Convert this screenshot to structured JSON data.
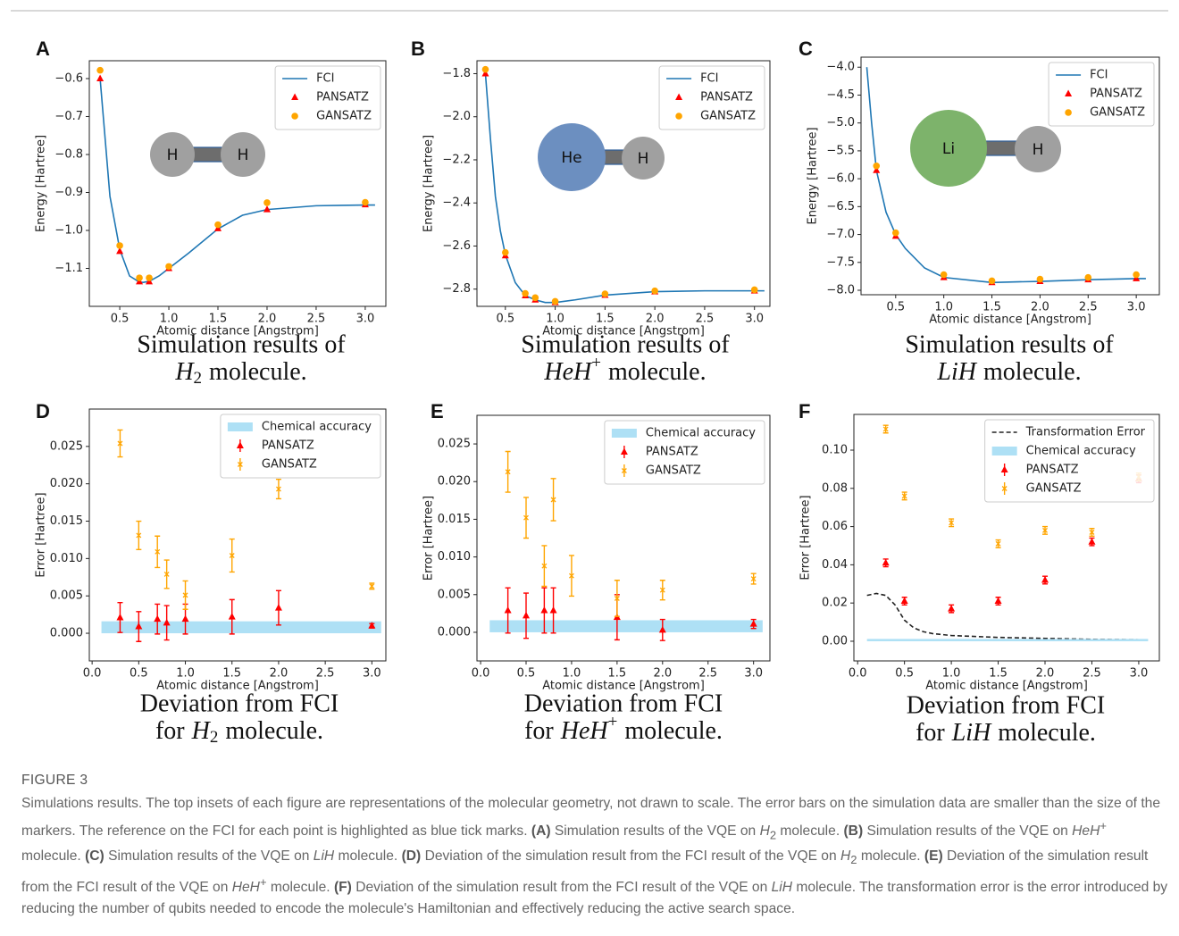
{
  "chart_data": [
    {
      "type": "line",
      "panel": "A",
      "xlabel": "Atomic distance [Angstrom]",
      "ylabel": "Energy [Hartree]",
      "xlim": [
        0.19,
        3.21
      ],
      "ylim": [
        -1.2,
        -0.553
      ],
      "xticks": [
        0.5,
        {
          "value": 1.0,
          "label": "1.0"
        },
        1.5,
        {
          "value": 2.0,
          "label": "2.0"
        },
        2.5,
        {
          "value": 3.0,
          "label": "3.0"
        }
      ],
      "yticks": [
        {
          "value": -1.1,
          "label": "−1.1"
        },
        {
          "value": -1.0,
          "label": "−1.0"
        },
        {
          "value": -0.9,
          "label": "−0.9"
        },
        {
          "value": -0.8,
          "label": "−0.8"
        },
        {
          "value": -0.7,
          "label": "−0.7"
        },
        {
          "value": -0.6,
          "label": "−0.6"
        }
      ],
      "legend": "upper right",
      "inset": [
        "H",
        "H"
      ],
      "caption": {
        "line1": "Simulation results of",
        "formula": "H",
        "sub": "2",
        "end": "molecule."
      },
      "series": [
        {
          "name": "FCI",
          "style": "line",
          "color": "#1f77b4",
          "x": [
            0.3,
            0.4,
            0.5,
            0.6,
            0.7,
            0.74,
            0.8,
            0.9,
            1.0,
            1.2,
            1.5,
            1.75,
            2.0,
            2.5,
            3.0,
            3.1
          ],
          "values": [
            -0.6,
            -0.91,
            -1.05,
            -1.12,
            -1.136,
            -1.137,
            -1.134,
            -1.12,
            -1.1,
            -1.06,
            -0.996,
            -0.96,
            -0.945,
            -0.935,
            -0.933,
            -0.933
          ]
        },
        {
          "name": "PANSATZ",
          "style": "marker",
          "marker": "triangle",
          "color": "#ff0000",
          "x": [
            0.3,
            0.5,
            0.7,
            0.8,
            1.0,
            1.5,
            2.0,
            3.0
          ],
          "values": [
            -0.6,
            -1.055,
            -1.135,
            -1.135,
            -1.1,
            -0.995,
            -0.945,
            -0.932
          ]
        },
        {
          "name": "GANSATZ",
          "style": "marker",
          "marker": "dot",
          "color": "#ffa500",
          "x": [
            0.3,
            0.5,
            0.7,
            0.8,
            1.0,
            1.5,
            2.0,
            3.0
          ],
          "values": [
            -0.578,
            -1.04,
            -1.125,
            -1.125,
            -1.095,
            -0.985,
            -0.927,
            -0.926
          ]
        }
      ]
    },
    {
      "type": "line",
      "panel": "B",
      "xlabel": "Atomic distance [Angstrom]",
      "ylabel": "Energy [Hartree]",
      "xlim": [
        0.215,
        3.155
      ],
      "ylim": [
        -2.88,
        -1.74
      ],
      "xticks": [
        0.5,
        {
          "value": 1.0,
          "label": "1.0"
        },
        1.5,
        {
          "value": 2.0,
          "label": "2.0"
        },
        2.5,
        {
          "value": 3.0,
          "label": "3.0"
        }
      ],
      "yticks": [
        {
          "value": -2.8,
          "label": "−2.8"
        },
        {
          "value": -2.6,
          "label": "−2.6"
        },
        {
          "value": -2.4,
          "label": "−2.4"
        },
        {
          "value": -2.2,
          "label": "−2.2"
        },
        {
          "value": -2.0,
          "label": "−2.0"
        },
        {
          "value": -1.8,
          "label": "−1.8"
        }
      ],
      "legend": "upper right",
      "inset": [
        "He",
        "H"
      ],
      "caption": {
        "line1": "Simulation results of",
        "formula": "HeH",
        "sup": "+",
        "end": "molecule."
      },
      "series": [
        {
          "name": "FCI",
          "style": "line",
          "color": "#1f77b4",
          "x": [
            0.3,
            0.35,
            0.4,
            0.45,
            0.5,
            0.6,
            0.7,
            0.8,
            0.9,
            1.0,
            1.2,
            1.5,
            2.0,
            2.5,
            3.0,
            3.1
          ],
          "values": [
            -1.8,
            -2.1,
            -2.37,
            -2.53,
            -2.64,
            -2.77,
            -2.83,
            -2.85,
            -2.862,
            -2.862,
            -2.85,
            -2.828,
            -2.812,
            -2.808,
            -2.808,
            -2.808
          ]
        },
        {
          "name": "PANSATZ",
          "style": "marker",
          "marker": "triangle",
          "color": "#ff0000",
          "x": [
            0.3,
            0.5,
            0.7,
            0.8,
            1.0,
            1.5,
            2.0,
            3.0
          ],
          "values": [
            -1.8,
            -2.645,
            -2.83,
            -2.85,
            -2.862,
            -2.828,
            -2.812,
            -2.808
          ]
        },
        {
          "name": "GANSATZ",
          "style": "marker",
          "marker": "dot",
          "color": "#ffa500",
          "x": [
            0.3,
            0.5,
            0.7,
            0.8,
            1.0,
            1.5,
            2.0,
            3.0
          ],
          "values": [
            -1.78,
            -2.63,
            -2.82,
            -2.84,
            -2.857,
            -2.822,
            -2.808,
            -2.803
          ]
        }
      ]
    },
    {
      "type": "line",
      "panel": "C",
      "xlabel": "Atomic distance [Angstrom]",
      "ylabel": "Energy [Hartree]",
      "xlim": [
        0.14,
        3.24
      ],
      "ylim": [
        -8.08,
        -3.82
      ],
      "xticks": [
        0.5,
        {
          "value": 1.0,
          "label": "1.0"
        },
        1.5,
        {
          "value": 2.0,
          "label": "2.0"
        },
        2.5,
        {
          "value": 3.0,
          "label": "3.0"
        }
      ],
      "yticks": [
        {
          "value": -8.0,
          "label": "−8.0"
        },
        {
          "value": -7.5,
          "label": "−7.5"
        },
        {
          "value": -7.0,
          "label": "−7.0"
        },
        {
          "value": -6.5,
          "label": "−6.5"
        },
        {
          "value": -6.0,
          "label": "−6.0"
        },
        {
          "value": -5.5,
          "label": "−5.5"
        },
        {
          "value": -5.0,
          "label": "−5.0"
        },
        {
          "value": -4.5,
          "label": "−4.5"
        },
        {
          "value": -4.0,
          "label": "−4.0"
        }
      ],
      "legend": "upper right",
      "inset": [
        "Li",
        "H"
      ],
      "caption": {
        "line1": "Simulation results of",
        "formula": "LiH",
        "end": "molecule."
      },
      "series": [
        {
          "name": "FCI",
          "style": "line",
          "color": "#1f77b4",
          "x": [
            0.2,
            0.25,
            0.3,
            0.4,
            0.5,
            0.6,
            0.8,
            1.0,
            1.5,
            2.0,
            2.5,
            3.0,
            3.1
          ],
          "values": [
            -4.0,
            -5.0,
            -5.85,
            -6.6,
            -7.0,
            -7.25,
            -7.6,
            -7.77,
            -7.86,
            -7.84,
            -7.81,
            -7.79,
            -7.79
          ]
        },
        {
          "name": "PANSATZ",
          "style": "marker",
          "marker": "triangle",
          "color": "#ff0000",
          "x": [
            0.3,
            0.5,
            1.0,
            1.5,
            2.0,
            2.5,
            3.0
          ],
          "values": [
            -5.85,
            -7.03,
            -7.77,
            -7.86,
            -7.84,
            -7.81,
            -7.79
          ]
        },
        {
          "name": "GANSATZ",
          "style": "marker",
          "marker": "dot",
          "color": "#ffa500",
          "x": [
            0.3,
            0.5,
            1.0,
            1.5,
            2.0,
            2.5,
            3.0
          ],
          "values": [
            -5.77,
            -6.97,
            -7.72,
            -7.83,
            -7.8,
            -7.77,
            -7.72
          ]
        }
      ]
    },
    {
      "type": "errorbar",
      "panel": "D",
      "xlabel": "Atomic distance [Angstrom]",
      "ylabel": "Error [Hartree]",
      "xlim": [
        -0.03,
        3.15
      ],
      "ylim": [
        -0.0037,
        0.03
      ],
      "xticks": [
        {
          "value": 0.0,
          "label": "0.0"
        },
        0.5,
        {
          "value": 1.0,
          "label": "1.0"
        },
        1.5,
        {
          "value": 2.0,
          "label": "2.0"
        },
        2.5,
        {
          "value": 3.0,
          "label": "3.0"
        }
      ],
      "yticks": [
        {
          "value": 0,
          "label": "0.000"
        },
        0.005,
        {
          "value": 0.01,
          "label": "0.010"
        },
        0.015,
        {
          "value": 0.02,
          "label": "0.020"
        },
        0.025
      ],
      "legend": "upper right",
      "caption": {
        "line1": "Deviation from FCI",
        "pre": "for",
        "formula": "H",
        "sub": "2",
        "end": "molecule."
      },
      "series": [
        {
          "name": "Chemical accuracy",
          "style": "band",
          "color": "#aee0f5",
          "xlim": [
            0.1,
            3.1
          ],
          "ylim": [
            0,
            0.0016
          ]
        },
        {
          "name": "PANSATZ",
          "style": "errorbar",
          "marker": "triangle",
          "color": "#ff0000",
          "x": [
            0.3,
            0.5,
            0.7,
            0.8,
            1.0,
            1.5,
            2.0,
            3.0
          ],
          "values": [
            0.0021,
            0.0009,
            0.0019,
            0.0014,
            0.0019,
            0.0022,
            0.0034,
            0.001
          ],
          "errors": [
            0.002,
            0.002,
            0.002,
            0.0023,
            0.002,
            0.0023,
            0.0023,
            0.0003
          ]
        },
        {
          "name": "GANSATZ",
          "style": "errorbar",
          "marker": "x",
          "color": "#ffa500",
          "x": [
            0.3,
            0.5,
            0.7,
            0.8,
            1.0,
            1.5,
            2.0,
            3.0
          ],
          "values": [
            0.0254,
            0.0131,
            0.0109,
            0.0079,
            0.0051,
            0.0104,
            0.0193,
            0.0063
          ],
          "errors": [
            0.0018,
            0.0019,
            0.0021,
            0.0019,
            0.0019,
            0.0022,
            0.0013,
            0.0004
          ]
        }
      ]
    },
    {
      "type": "errorbar",
      "panel": "E",
      "xlabel": "Atomic distance [Angstrom]",
      "ylabel": "Error [Hartree]",
      "xlim": [
        -0.04,
        3.18
      ],
      "ylim": [
        -0.0038,
        0.0288
      ],
      "xticks": [
        {
          "value": 0.0,
          "label": "0.0"
        },
        0.5,
        {
          "value": 1.0,
          "label": "1.0"
        },
        1.5,
        {
          "value": 2.0,
          "label": "2.0"
        },
        2.5,
        {
          "value": 3.0,
          "label": "3.0"
        }
      ],
      "yticks": [
        {
          "value": 0,
          "label": "0.000"
        },
        0.005,
        {
          "value": 0.01,
          "label": "0.010"
        },
        0.015,
        {
          "value": 0.02,
          "label": "0.020"
        },
        0.025
      ],
      "legend": "upper right",
      "caption": {
        "line1": "Deviation from FCI",
        "pre": "for",
        "formula": "HeH",
        "sup": "+",
        "end": "molecule."
      },
      "series": [
        {
          "name": "Chemical accuracy",
          "style": "band",
          "color": "#aee0f5",
          "xlim": [
            0.1,
            3.1
          ],
          "ylim": [
            0,
            0.0016
          ]
        },
        {
          "name": "PANSATZ",
          "style": "errorbar",
          "marker": "triangle",
          "color": "#ff0000",
          "x": [
            0.3,
            0.5,
            0.7,
            0.8,
            1.5,
            2.0,
            3.0
          ],
          "values": [
            0.0029,
            0.0022,
            0.0029,
            0.0029,
            0.002,
            0.0003,
            0.0011
          ],
          "errors": [
            0.003,
            0.003,
            0.003,
            0.003,
            0.003,
            0.0014,
            0.0006
          ]
        },
        {
          "name": "GANSATZ",
          "style": "errorbar",
          "marker": "x",
          "color": "#ffa500",
          "x": [
            0.3,
            0.5,
            0.7,
            0.8,
            1.0,
            1.5,
            2.0,
            3.0
          ],
          "values": [
            0.0213,
            0.0152,
            0.0088,
            0.0176,
            0.0075,
            0.0045,
            0.0056,
            0.0071
          ],
          "errors": [
            0.0027,
            0.0027,
            0.0027,
            0.0028,
            0.0027,
            0.0024,
            0.0013,
            0.0007
          ]
        }
      ]
    },
    {
      "type": "errorbar",
      "panel": "F",
      "xlabel": "Atomic distance [Angstrom]",
      "ylabel": "Error [Hartree]",
      "xlim": [
        -0.04,
        3.22
      ],
      "ylim": [
        -0.0103,
        0.1187
      ],
      "xticks": [
        {
          "value": 0.0,
          "label": "0.0"
        },
        0.5,
        {
          "value": 1.0,
          "label": "1.0"
        },
        1.5,
        {
          "value": 2.0,
          "label": "2.0"
        },
        2.5,
        {
          "value": 3.0,
          "label": "3.0"
        }
      ],
      "yticks": [
        {
          "value": 0,
          "label": "0.00"
        },
        0.02,
        0.04,
        0.06,
        0.08,
        {
          "value": 0.1,
          "label": "0.10"
        }
      ],
      "legend": "upper right",
      "caption": {
        "line1": "Deviation from FCI",
        "pre": "for",
        "formula": "LiH",
        "end": "molecule."
      },
      "series": [
        {
          "name": "Transformation Error",
          "style": "dashed",
          "color": "#222222",
          "x": [
            0.1,
            0.2,
            0.3,
            0.4,
            0.5,
            0.6,
            0.7,
            0.8,
            1.0,
            1.5,
            2.0,
            2.5,
            3.0,
            3.1
          ],
          "values": [
            0.024,
            0.025,
            0.024,
            0.019,
            0.011,
            0.007,
            0.005,
            0.004,
            0.003,
            0.002,
            0.0015,
            0.001,
            0.0008,
            0.0008
          ]
        },
        {
          "name": "Chemical accuracy",
          "style": "band",
          "color": "#aee0f5",
          "xlim": [
            0.1,
            3.1
          ],
          "ylim": [
            0,
            0.0012
          ]
        },
        {
          "name": "PANSATZ",
          "style": "errorbar",
          "marker": "triangle",
          "color": "#ff0000",
          "x": [
            0.3,
            0.5,
            1.0,
            1.5,
            2.0,
            2.5,
            3.0
          ],
          "values": [
            0.041,
            0.021,
            0.017,
            0.021,
            0.032,
            0.052,
            0.085
          ],
          "errors": [
            0.002,
            0.002,
            0.002,
            0.002,
            0.002,
            0.002,
            0.002
          ]
        },
        {
          "name": "GANSATZ",
          "style": "errorbar",
          "marker": "x",
          "color": "#ffa500",
          "x": [
            0.3,
            0.5,
            1.0,
            1.5,
            2.0,
            2.5,
            3.0
          ],
          "values": [
            0.111,
            0.076,
            0.062,
            0.051,
            0.058,
            0.057,
            0.086
          ],
          "errors": [
            0.002,
            0.002,
            0.002,
            0.002,
            0.002,
            0.002,
            0.002
          ]
        }
      ]
    }
  ],
  "figure": {
    "label": "FIGURE 3",
    "caption": [
      "Simulations results. The top insets of each figure are representations of the molecular geometry, not drawn to scale. The error bars on the simulation data are smaller than the size of the markers. The reference on the FCI for each point is highlighted as blue tick marks. ",
      "(A)",
      " Simulation results of the VQE on ",
      "H",
      "2",
      " molecule. ",
      "(B)",
      " Simulation results of the VQE on ",
      "HeH",
      "+",
      " molecule. ",
      "(C)",
      " Simulation results of the VQE on ",
      "LiH",
      " molecule. ",
      "(D)",
      " Deviation of the simulation result from the FCI result of the VQE on ",
      "H",
      "2",
      " molecule. ",
      "(E)",
      " Deviation of the simulation result from the FCI result of the VQE on ",
      "HeH",
      "+",
      " molecule. ",
      "(F)",
      " Deviation of the simulation result from the FCI result of the VQE on ",
      "LiH",
      " molecule. The transformation error is the error introduced by reducing the number of qubits needed to encode the molecule's Hamiltonian and effectively reducing the active search space."
    ]
  }
}
